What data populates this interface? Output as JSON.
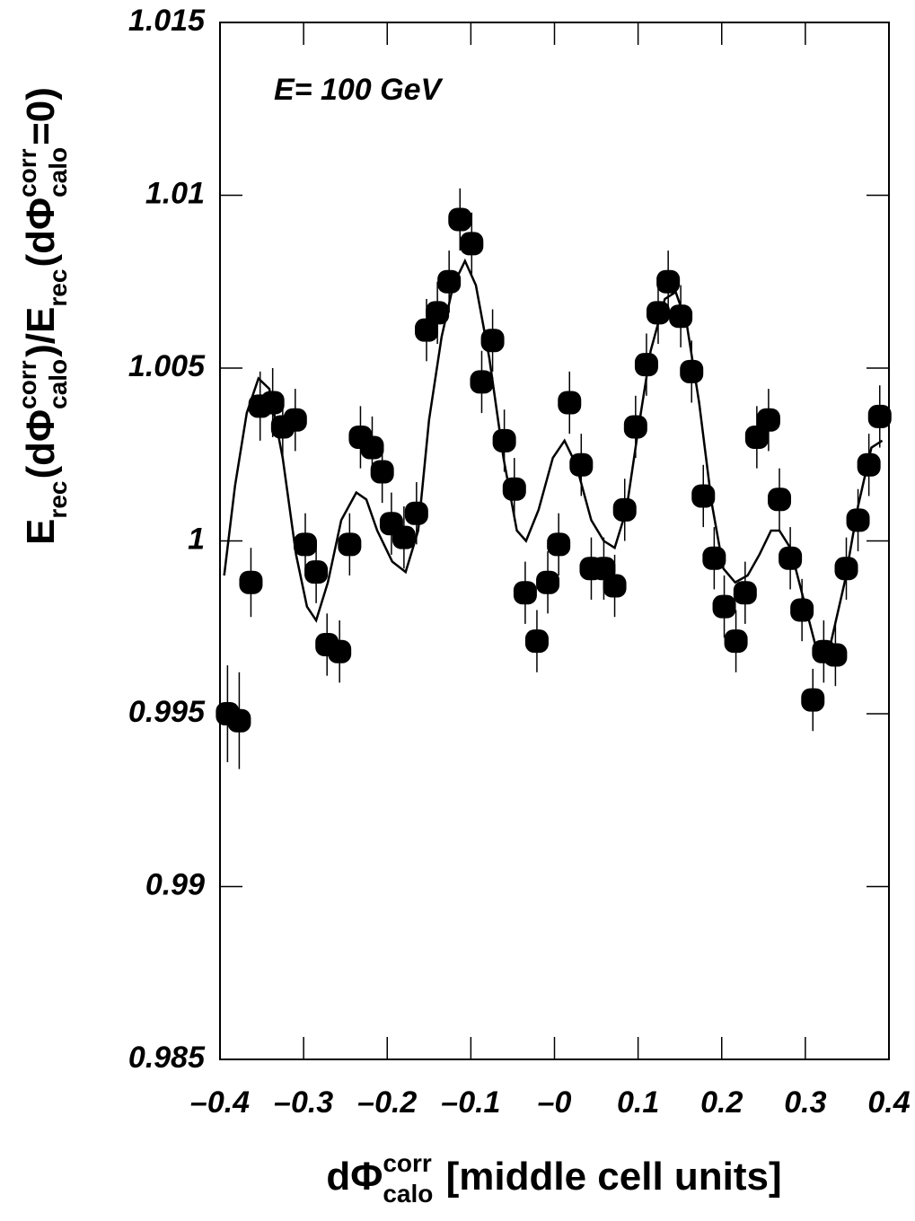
{
  "chart_data": {
    "type": "scatter",
    "annotation": "E= 100 GeV",
    "x_label": [
      {
        "text": "dΦ"
      },
      {
        "text": "corr",
        "shift": "sup"
      },
      {
        "text": "calo",
        "shift": "sub"
      },
      {
        "text": " [middle cell units]"
      }
    ],
    "y_label": [
      {
        "text": "E"
      },
      {
        "text": "rec",
        "shift": "sub"
      },
      {
        "text": "(dΦ"
      },
      {
        "text": "corr",
        "shift": "sup"
      },
      {
        "text": "calo",
        "shift": "sub"
      },
      {
        "text": ")/E"
      },
      {
        "text": "rec",
        "shift": "sub"
      },
      {
        "text": "(dΦ"
      },
      {
        "text": "corr",
        "shift": "sup"
      },
      {
        "text": "calo",
        "shift": "sub"
      },
      {
        "text": "=0)"
      }
    ],
    "xlim": [
      -0.4,
      0.4
    ],
    "ylim": [
      0.985,
      1.015
    ],
    "xticks": [
      {
        "value": -0.4,
        "label": "–0.4"
      },
      {
        "value": -0.3,
        "label": "–0.3"
      },
      {
        "value": -0.2,
        "label": "–0.2"
      },
      {
        "value": -0.1,
        "label": "–0.1"
      },
      {
        "value": 0,
        "label": "–0"
      },
      0.1,
      0.2,
      0.3,
      0.4
    ],
    "yticks": [
      0.985,
      0.99,
      0.995,
      1,
      1.005,
      1.01,
      1.015
    ],
    "color": "#000000",
    "points": {
      "x": [
        -0.391,
        -0.377,
        -0.363,
        -0.352,
        -0.337,
        -0.325,
        -0.31,
        -0.298,
        -0.285,
        -0.272,
        -0.257,
        -0.245,
        -0.232,
        -0.218,
        -0.206,
        -0.195,
        -0.18,
        -0.165,
        -0.153,
        -0.14,
        -0.126,
        -0.113,
        -0.099,
        -0.087,
        -0.074,
        -0.06,
        -0.048,
        -0.035,
        -0.021,
        -0.008,
        0.005,
        0.018,
        0.032,
        0.044,
        0.059,
        0.072,
        0.084,
        0.097,
        0.11,
        0.124,
        0.136,
        0.151,
        0.164,
        0.178,
        0.191,
        0.203,
        0.217,
        0.228,
        0.242,
        0.256,
        0.269,
        0.282,
        0.296,
        0.309,
        0.322,
        0.336,
        0.349,
        0.363,
        0.376,
        0.389
      ],
      "values": [
        0.995,
        0.9948,
        0.9988,
        1.0039,
        1.004,
        1.0033,
        1.0035,
        0.9999,
        0.9991,
        0.997,
        0.9968,
        0.9999,
        1.003,
        1.0027,
        1.002,
        1.0005,
        1.0001,
        1.0008,
        1.0061,
        1.0066,
        1.0075,
        1.0093,
        1.0086,
        1.0046,
        1.0058,
        1.0029,
        1.0015,
        0.9985,
        0.9971,
        0.9988,
        0.9999,
        1.004,
        1.0022,
        0.9992,
        0.9992,
        0.9987,
        1.0009,
        1.0033,
        1.0051,
        1.0066,
        1.0075,
        1.0065,
        1.0049,
        1.0013,
        0.9995,
        0.9981,
        0.9971,
        0.9985,
        1.003,
        1.0035,
        1.0012,
        0.9995,
        0.998,
        0.9954,
        0.9968,
        0.9967,
        0.9992,
        1.0006,
        1.0022,
        1.0036
      ],
      "errors": [
        0.0014,
        0.0014,
        0.001,
        0.001,
        0.001,
        0.0009,
        0.0009,
        0.0009,
        0.0009,
        0.0009,
        0.0009,
        0.0009,
        0.0009,
        0.0009,
        0.0009,
        0.0009,
        0.0009,
        0.0009,
        0.0009,
        0.0009,
        0.0009,
        0.0009,
        0.0009,
        0.0009,
        0.0009,
        0.0009,
        0.0009,
        0.0009,
        0.0009,
        0.0009,
        0.0009,
        0.0009,
        0.0009,
        0.0009,
        0.0009,
        0.0009,
        0.0009,
        0.0009,
        0.0009,
        0.0009,
        0.0009,
        0.0009,
        0.0009,
        0.0009,
        0.0009,
        0.0009,
        0.0009,
        0.0009,
        0.0009,
        0.0009,
        0.0009,
        0.0009,
        0.0009,
        0.0009,
        0.0009,
        0.0009,
        0.0009,
        0.0009,
        0.0009,
        0.0009
      ]
    },
    "fit": {
      "x": [
        -0.395,
        -0.382,
        -0.368,
        -0.354,
        -0.341,
        -0.325,
        -0.309,
        -0.296,
        -0.285,
        -0.271,
        -0.255,
        -0.237,
        -0.225,
        -0.212,
        -0.194,
        -0.178,
        -0.163,
        -0.15,
        -0.135,
        -0.121,
        -0.107,
        -0.094,
        -0.078,
        -0.061,
        -0.045,
        -0.034,
        -0.019,
        -0.002,
        0.012,
        0.026,
        0.044,
        0.059,
        0.072,
        0.086,
        0.1,
        0.115,
        0.132,
        0.145,
        0.158,
        0.173,
        0.188,
        0.202,
        0.216,
        0.231,
        0.245,
        0.259,
        0.269,
        0.282,
        0.298,
        0.314,
        0.33,
        0.347,
        0.363,
        0.379,
        0.392
      ],
      "values": [
        0.999,
        1.0016,
        1.0037,
        1.0047,
        1.0044,
        1.0024,
        0.9996,
        0.9981,
        0.9977,
        0.9988,
        1.0006,
        1.0014,
        1.0012,
        1.0003,
        0.9994,
        0.9991,
        1.0003,
        1.0035,
        1.0059,
        1.0074,
        1.0081,
        1.0074,
        1.0053,
        1.0024,
        1.0003,
        1.0,
        1.0009,
        1.0024,
        1.0029,
        1.0022,
        1.0006,
        1.0,
        0.9998,
        1.0009,
        1.0032,
        1.0055,
        1.007,
        1.0072,
        1.0063,
        1.004,
        1.0011,
        0.9992,
        0.9988,
        0.999,
        0.9996,
        1.0003,
        1.0003,
        0.9998,
        0.9983,
        0.9968,
        0.997,
        0.9988,
        1.001,
        1.0027,
        1.0029
      ]
    }
  }
}
